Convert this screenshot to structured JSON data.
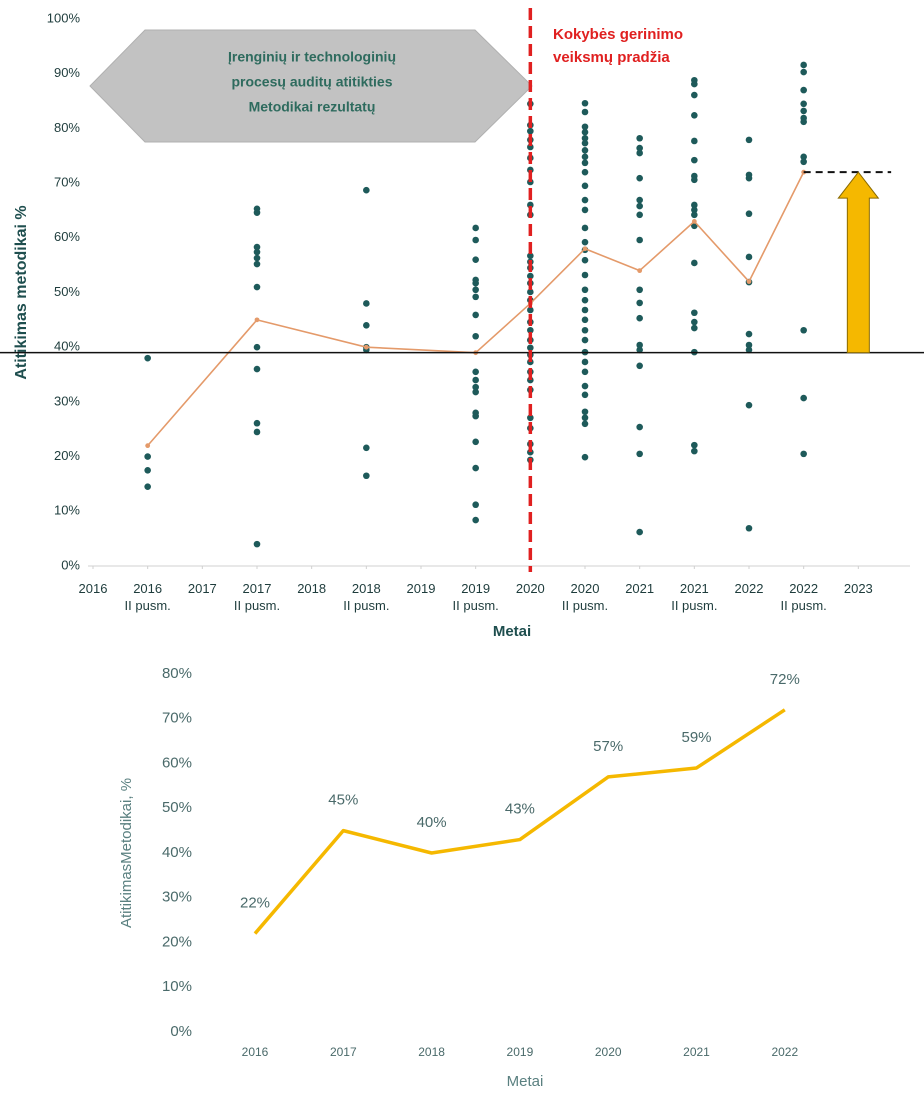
{
  "chart_data": [
    {
      "type": "scatter",
      "y_label": "Atitikimas metodikai %",
      "x_label": "Metai",
      "xlim": [
        2016,
        2023.5
      ],
      "xticks": [
        2016,
        {
          "value": 2016.5,
          "label": "2016\nII pusm."
        },
        2017,
        {
          "value": 2017.5,
          "label": "2017\nII pusm."
        },
        2018,
        {
          "value": 2018.5,
          "label": "2018\nII pusm."
        },
        2019,
        {
          "value": 2019.5,
          "label": "2019\nII pusm."
        },
        2020,
        {
          "value": 2020.5,
          "label": "2020\nII pusm."
        },
        2021,
        {
          "value": 2021.5,
          "label": "2021\nII pusm."
        },
        2022,
        {
          "value": 2022.5,
          "label": "2022\nII pusm."
        },
        2023
      ],
      "ylim": [
        0,
        100
      ],
      "yticks": [
        {
          "value": 0,
          "label": "0%"
        },
        {
          "value": 10,
          "label": "10%"
        },
        {
          "value": 20,
          "label": "20%"
        },
        {
          "value": 30,
          "label": "30%"
        },
        {
          "value": 40,
          "label": "40%"
        },
        {
          "value": 50,
          "label": "50%"
        },
        {
          "value": 60,
          "label": "60%"
        },
        {
          "value": 70,
          "label": "70%"
        },
        {
          "value": 80,
          "label": "80%"
        },
        {
          "value": 90,
          "label": "90%"
        },
        {
          "value": 100,
          "label": "100%"
        }
      ],
      "grid": false,
      "series": [
        {
          "type": "scatter",
          "color": "#1e5a5a",
          "groups": [
            {
              "x": 2016.5,
              "values": [
                38,
                20,
                17.5,
                14.5
              ]
            },
            {
              "x": 2017.5,
              "values": [
                65.3,
                64.6,
                58.3,
                57.4,
                56.3,
                55.2,
                51,
                40,
                36,
                26.1,
                24.5,
                4
              ]
            },
            {
              "x": 2018.5,
              "values": [
                68.7,
                48,
                44,
                40,
                39.5,
                21.6,
                16.5
              ]
            },
            {
              "x": 2019.5,
              "values": [
                61.8,
                59.6,
                56,
                52.3,
                51.7,
                50.5,
                49.2,
                45.9,
                42,
                35.5,
                34,
                32.7,
                31.8,
                28,
                27.4,
                22.7,
                17.9,
                11.2,
                8.4
              ]
            },
            {
              "x": 2020,
              "values": [
                84.5,
                80.6,
                79.5,
                77.9,
                76.6,
                74.6,
                72.4,
                70.2,
                66,
                64.2,
                56.7,
                55.6,
                54.5,
                53,
                51.7,
                50.1,
                48.6,
                46.8,
                44.6,
                43.1,
                41.3,
                39.9,
                38.6,
                37.3,
                35.5,
                34,
                32.2,
                27.1,
                25.2,
                22.3,
                20.8,
                19.4
              ]
            },
            {
              "x": 2020.5,
              "values": [
                84.6,
                83,
                80.3,
                79.3,
                78.2,
                77.3,
                76,
                74.8,
                73.7,
                72,
                69.5,
                66.9,
                65.1,
                61.8,
                59.2,
                57.8,
                55.9,
                53.2,
                50.5,
                48.6,
                46.8,
                45,
                43.1,
                41.3,
                39.1,
                37.3,
                35.5,
                32.9,
                31.3,
                28.2,
                27.1,
                26,
                19.9
              ]
            },
            {
              "x": 2021,
              "values": [
                78.2,
                76.4,
                75.5,
                70.9,
                66.9,
                65.8,
                64.2,
                59.6,
                50.5,
                48.1,
                45.3,
                40.4,
                39.5,
                36.6,
                25.4,
                20.5,
                6.2
              ]
            },
            {
              "x": 2021.5,
              "values": [
                88.8,
                88.1,
                86.1,
                82.4,
                77.7,
                74.2,
                71.3,
                70.6,
                66,
                65.1,
                64.2,
                62.2,
                55.4,
                46.3,
                44.6,
                43.5,
                39.1,
                22.1,
                21
              ]
            },
            {
              "x": 2022,
              "values": [
                77.9,
                71.5,
                70.9,
                64.4,
                56.5,
                51.9,
                42.4,
                40.4,
                39.5,
                29.4,
                6.9
              ]
            },
            {
              "x": 2022.5,
              "values": [
                91.6,
                90.3,
                87,
                84.5,
                83.2,
                81.9,
                81.2,
                74.8,
                73.9,
                43.1,
                30.7,
                20.5
              ]
            }
          ]
        },
        {
          "type": "line",
          "color": "#e49a6a",
          "x": [
            2016.5,
            2017.5,
            2018.5,
            2019.5,
            2020,
            2020.5,
            2021,
            2021.5,
            2022,
            2022.5
          ],
          "values": [
            22,
            45,
            40,
            39,
            48,
            58,
            54,
            63,
            52,
            72
          ]
        }
      ],
      "reference_line": 39,
      "start_line_x": 2020,
      "start_text": [
        "Kokybės gerinimo",
        "veiksmų pradžia"
      ],
      "box_text": [
        "Įrenginių ir technologinių",
        "procesų auditų atitikties",
        "Metodikai rezultatų"
      ],
      "target_line": {
        "x": [
          2022.5,
          2023.3
        ],
        "value": 72
      },
      "arrow": {
        "x": 2023,
        "from": 39,
        "to": 72,
        "color": "#f5b800"
      }
    },
    {
      "type": "line",
      "y_label": "AtitikimasMetodikai, %",
      "x_label": "Metai",
      "categories": [
        "2016",
        "2017",
        "2018",
        "2019",
        "2020",
        "2021",
        "2022"
      ],
      "values": [
        22,
        45,
        40,
        43,
        57,
        59,
        72
      ],
      "value_labels": [
        "22%",
        "45%",
        "40%",
        "43%",
        "57%",
        "59%",
        "72%"
      ],
      "color": "#f5b800",
      "ylim": [
        0,
        80
      ],
      "yticks": [
        {
          "value": 0,
          "label": "0%"
        },
        {
          "value": 10,
          "label": "10%"
        },
        {
          "value": 20,
          "label": "20%"
        },
        {
          "value": 30,
          "label": "30%"
        },
        {
          "value": 40,
          "label": "40%"
        },
        {
          "value": 50,
          "label": "50%"
        },
        {
          "value": 60,
          "label": "60%"
        },
        {
          "value": 70,
          "label": "70%"
        },
        {
          "value": 80,
          "label": "80%"
        }
      ],
      "grid": false
    }
  ]
}
